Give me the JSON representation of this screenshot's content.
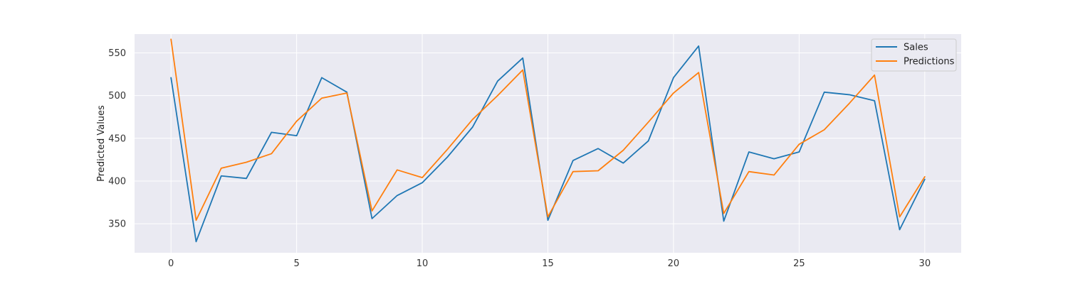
{
  "chart_data": {
    "type": "line",
    "title": "",
    "xlabel": "",
    "ylabel": "Predicted Values",
    "xlim": [
      -1.45,
      31.45
    ],
    "ylim": [
      316,
      572
    ],
    "xticks": [
      0,
      5,
      10,
      15,
      20,
      25,
      30
    ],
    "yticks": [
      350,
      400,
      450,
      500,
      550
    ],
    "grid": true,
    "background": "#eaeaf2",
    "legend_position": "top-right",
    "x": [
      0,
      1,
      2,
      3,
      4,
      5,
      6,
      7,
      8,
      9,
      10,
      11,
      12,
      13,
      14,
      15,
      16,
      17,
      18,
      19,
      20,
      21,
      22,
      23,
      24,
      25,
      26,
      27,
      28,
      29,
      30
    ],
    "series": [
      {
        "name": "Sales",
        "color": "#1f77b4",
        "values": [
          521,
          329,
          406,
          403,
          457,
          453,
          521,
          504,
          356,
          383,
          398,
          428,
          463,
          517,
          544,
          354,
          424,
          438,
          421,
          447,
          521,
          558,
          353,
          434,
          426,
          434,
          504,
          501,
          494,
          343,
          402
        ]
      },
      {
        "name": "Predictions",
        "color": "#ff7f0e",
        "values": [
          566,
          354,
          415,
          422,
          432,
          470,
          497,
          503,
          365,
          413,
          404,
          437,
          472,
          500,
          530,
          358,
          411,
          412,
          436,
          469,
          503,
          527,
          362,
          411,
          407,
          443,
          460,
          491,
          524,
          358,
          405
        ]
      }
    ]
  }
}
